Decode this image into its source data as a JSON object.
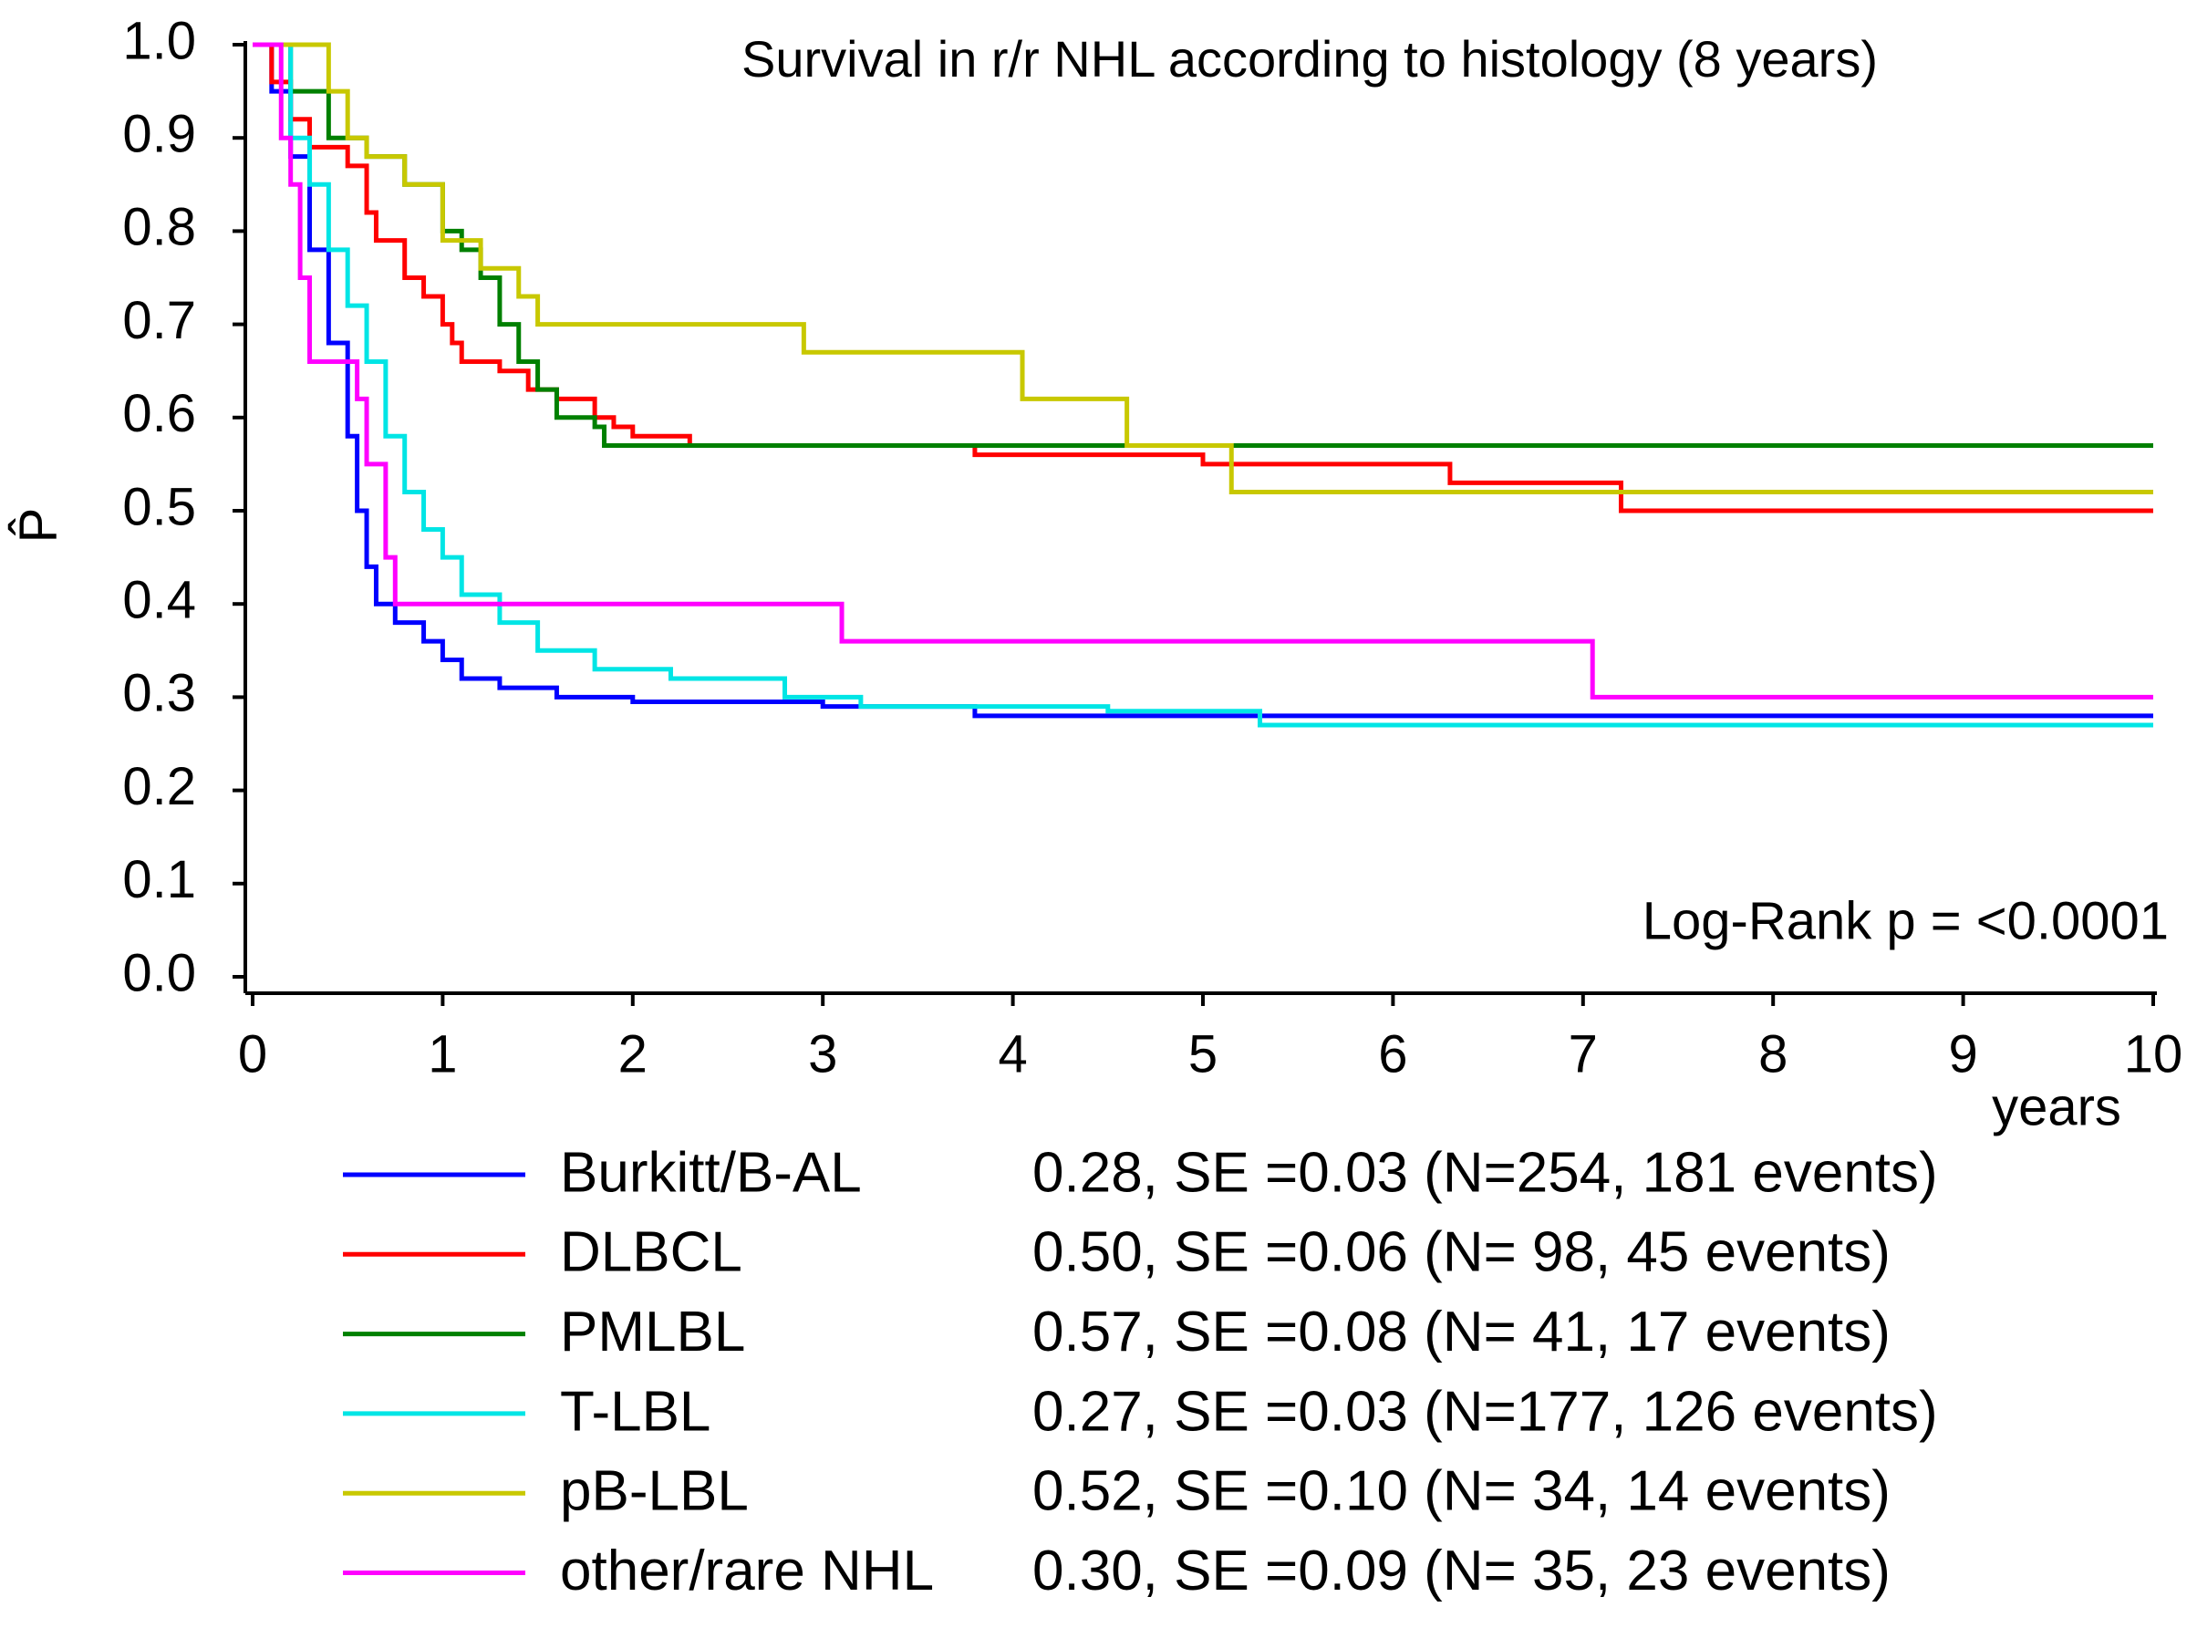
{
  "chart_data": {
    "type": "step",
    "title": "Survival in r/r NHL according to histology (8 years)",
    "x_label": "years",
    "y_label": "P̂",
    "annotation": "Log-Rank p = <0.0001",
    "xlim": [
      0,
      10
    ],
    "xticks": [
      0,
      1,
      2,
      3,
      4,
      5,
      6,
      7,
      8,
      9,
      10
    ],
    "ylim": [
      0,
      1
    ],
    "yticks": [
      {
        "value": 0,
        "label": "0.0"
      },
      {
        "value": 0.1,
        "label": "0.1"
      },
      {
        "value": 0.2,
        "label": "0.2"
      },
      {
        "value": 0.3,
        "label": "0.3"
      },
      {
        "value": 0.4,
        "label": "0.4"
      },
      {
        "value": 0.5,
        "label": "0.5"
      },
      {
        "value": 0.6,
        "label": "0.6"
      },
      {
        "value": 0.7,
        "label": "0.7"
      },
      {
        "value": 0.8,
        "label": "0.8"
      },
      {
        "value": 0.9,
        "label": "0.9"
      },
      {
        "value": 1,
        "label": "1.0"
      }
    ],
    "series": [
      {
        "name": "Burkitt/B-AL",
        "stats": "0.28, SE =0.03 (N=254, 181 events)",
        "color": "#0000ff",
        "x": [
          0,
          0.1,
          0.2,
          0.3,
          0.4,
          0.5,
          0.55,
          0.6,
          0.65,
          0.75,
          0.9,
          1.0,
          1.1,
          1.3,
          1.6,
          2.0,
          3.0,
          3.8,
          10
        ],
        "values": [
          1,
          0.95,
          0.88,
          0.78,
          0.68,
          0.58,
          0.5,
          0.44,
          0.4,
          0.38,
          0.36,
          0.34,
          0.32,
          0.31,
          0.3,
          0.295,
          0.29,
          0.28,
          0.28
        ]
      },
      {
        "name": "DLBCL",
        "stats": "0.50, SE =0.06 (N= 98, 45 events)",
        "color": "#ff0000",
        "x": [
          0,
          0.1,
          0.2,
          0.3,
          0.5,
          0.6,
          0.65,
          0.8,
          0.9,
          1.0,
          1.05,
          1.1,
          1.3,
          1.45,
          1.6,
          1.8,
          1.9,
          2.0,
          2.3,
          3.8,
          5.0,
          6.3,
          7.2,
          10
        ],
        "values": [
          1,
          0.96,
          0.92,
          0.89,
          0.87,
          0.82,
          0.79,
          0.75,
          0.73,
          0.7,
          0.68,
          0.66,
          0.65,
          0.63,
          0.62,
          0.6,
          0.59,
          0.58,
          0.57,
          0.56,
          0.55,
          0.53,
          0.5,
          0.5
        ]
      },
      {
        "name": "PMLBL",
        "stats": "0.57, SE =0.08 (N= 41, 17 events)",
        "color": "#008000",
        "x": [
          0,
          0.2,
          0.4,
          0.6,
          0.8,
          1.0,
          1.1,
          1.2,
          1.3,
          1.4,
          1.5,
          1.6,
          1.8,
          1.85,
          10
        ],
        "values": [
          1,
          0.95,
          0.9,
          0.88,
          0.85,
          0.8,
          0.78,
          0.75,
          0.7,
          0.66,
          0.63,
          0.6,
          0.59,
          0.57,
          0.57
        ]
      },
      {
        "name": "T-LBL",
        "stats": "0.27, SE =0.03 (N=177, 126 events)",
        "color": "#00e5e5",
        "x": [
          0,
          0.2,
          0.3,
          0.4,
          0.5,
          0.6,
          0.7,
          0.8,
          0.9,
          1.0,
          1.1,
          1.3,
          1.5,
          1.8,
          2.2,
          2.8,
          3.2,
          4.5,
          5.3,
          10
        ],
        "values": [
          1,
          0.9,
          0.85,
          0.78,
          0.72,
          0.66,
          0.58,
          0.52,
          0.48,
          0.45,
          0.41,
          0.38,
          0.35,
          0.33,
          0.32,
          0.3,
          0.29,
          0.285,
          0.27,
          0.27
        ]
      },
      {
        "name": "pB-LBL",
        "stats": "0.52, SE =0.10 (N= 34, 14 events)",
        "color": "#c8c800",
        "x": [
          0,
          0.4,
          0.5,
          0.6,
          0.8,
          1.0,
          1.2,
          1.4,
          1.5,
          2.9,
          4.05,
          4.6,
          5.15,
          10
        ],
        "values": [
          1,
          0.95,
          0.9,
          0.88,
          0.85,
          0.79,
          0.76,
          0.73,
          0.7,
          0.67,
          0.62,
          0.57,
          0.52,
          0.52
        ]
      },
      {
        "name": "other/rare NHL",
        "stats": "0.30, SE =0.09 (N= 35, 23 events)",
        "color": "#ff00ff",
        "x": [
          0,
          0.15,
          0.2,
          0.25,
          0.3,
          0.55,
          0.6,
          0.7,
          0.75,
          3.1,
          7.05,
          10
        ],
        "values": [
          1,
          0.9,
          0.85,
          0.75,
          0.66,
          0.62,
          0.55,
          0.45,
          0.4,
          0.36,
          0.3,
          0.3
        ]
      }
    ]
  }
}
